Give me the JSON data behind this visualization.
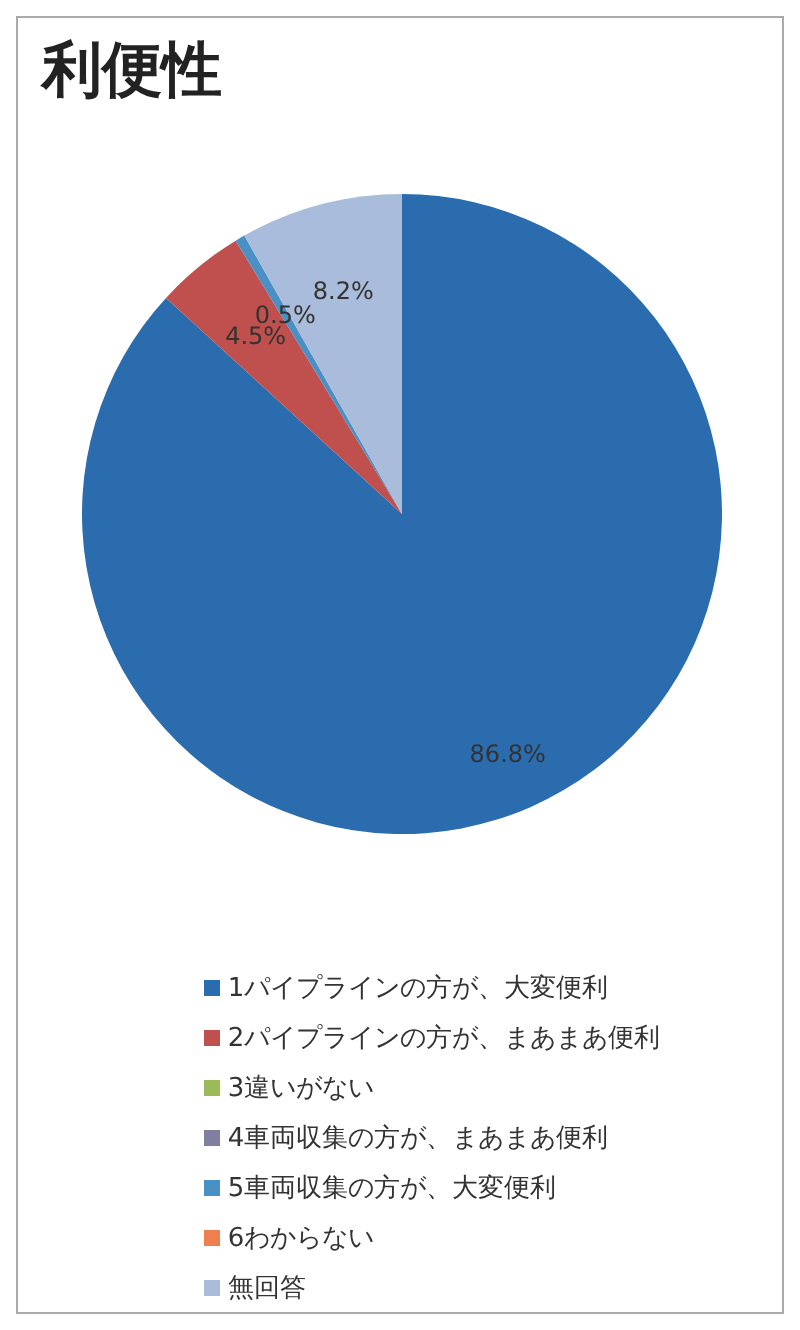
{
  "chart_data": {
    "type": "pie",
    "title": "利便性",
    "categories": [
      "1パイプラインの方が、大変便利",
      "2パイプラインの方が、まあまあ便利",
      "3違いがない",
      "4車両収集の方が、まあまあ便利",
      "5車両収集の方が、大変便利",
      "6わからない",
      "無回答"
    ],
    "values": [
      86.8,
      4.5,
      0,
      0,
      0.5,
      0,
      8.2
    ],
    "colors": [
      "#2b6cae",
      "#c0504d",
      "#9bbb59",
      "#7f7f9f",
      "#4a90c4",
      "#f07f50",
      "#a9bcdb"
    ],
    "value_labels": [
      "86.8%",
      "4.5%",
      null,
      null,
      "0.5%",
      null,
      "8.2%"
    ],
    "legend": "bottom"
  }
}
